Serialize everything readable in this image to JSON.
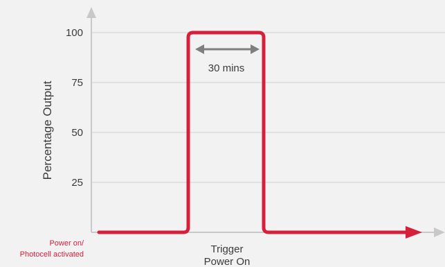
{
  "chart_data": {
    "type": "line",
    "title": "",
    "xlabel": "",
    "ylabel": "Percentage Output",
    "ylim": [
      0,
      100
    ],
    "yticks": [
      25,
      50,
      75,
      100
    ],
    "grid": true,
    "x_annotations": {
      "origin_label_line1": "Power on/",
      "origin_label_line2": "Photocell activated",
      "trigger_label_line1": "Trigger",
      "trigger_label_line2": "Power On"
    },
    "duration_annotation": "30 mins",
    "series": [
      {
        "points": [
          {
            "t": 0,
            "y": 0
          },
          {
            "t": 1,
            "y": 0
          },
          {
            "t": 1,
            "y": 100
          },
          {
            "t": 2,
            "y": 100
          },
          {
            "t": 2,
            "y": 0
          },
          {
            "t": 3.6,
            "y": 0
          }
        ]
      }
    ],
    "colors": {
      "series": "#d6203a",
      "axis": "#c8c8c8",
      "grid": "#d0d0d0",
      "annotation_arrow": "#7f7f7f",
      "origin_label": "#d6203a"
    }
  }
}
